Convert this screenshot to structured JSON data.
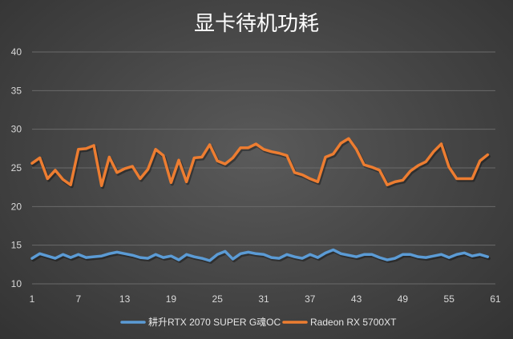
{
  "chart_data": {
    "type": "line",
    "title": "显卡待机功耗",
    "xlabel": "",
    "ylabel": "",
    "xlim": [
      1,
      61
    ],
    "ylim": [
      10,
      40
    ],
    "y_ticks": [
      "10",
      "15",
      "20",
      "25",
      "30",
      "35",
      "40"
    ],
    "x_ticks": [
      "1",
      "7",
      "13",
      "19",
      "25",
      "31",
      "37",
      "43",
      "49",
      "55",
      "61"
    ],
    "grid": true,
    "legend": "bottom",
    "series": [
      {
        "name": "耕升RTX 2070 SUPER G魂OC",
        "color": "#5b9bd5",
        "values": [
          13.3,
          13.9,
          13.6,
          13.3,
          13.8,
          13.4,
          13.8,
          13.4,
          13.5,
          13.6,
          13.9,
          14.1,
          13.9,
          13.7,
          13.4,
          13.3,
          13.8,
          13.4,
          13.6,
          13.1,
          13.8,
          13.5,
          13.3,
          13.0,
          13.8,
          14.2,
          13.2,
          13.9,
          14.1,
          13.9,
          13.8,
          13.4,
          13.3,
          13.8,
          13.5,
          13.3,
          13.8,
          13.4,
          14.0,
          14.4,
          13.9,
          13.7,
          13.5,
          13.8,
          13.8,
          13.4,
          13.1,
          13.3,
          13.8,
          13.8,
          13.5,
          13.4,
          13.6,
          13.8,
          13.4,
          13.8,
          14.0,
          13.6,
          13.8,
          13.5
        ]
      },
      {
        "name": "Radeon RX 5700XT",
        "color": "#ed7d31",
        "values": [
          25.6,
          26.3,
          23.6,
          24.7,
          23.5,
          22.8,
          27.4,
          27.5,
          27.9,
          22.7,
          26.4,
          24.4,
          24.9,
          25.2,
          23.6,
          24.8,
          27.4,
          26.6,
          23.1,
          26.0,
          23.2,
          26.3,
          26.4,
          28.0,
          25.9,
          25.5,
          26.3,
          27.6,
          27.6,
          28.1,
          27.4,
          27.1,
          26.9,
          26.6,
          24.4,
          24.1,
          23.6,
          23.2,
          26.4,
          26.8,
          28.2,
          28.8,
          27.4,
          25.4,
          25.1,
          24.7,
          22.8,
          23.2,
          23.4,
          24.6,
          25.3,
          25.8,
          27.1,
          28.1,
          25.1,
          23.6,
          23.6,
          23.6,
          25.9,
          26.7
        ]
      }
    ]
  }
}
